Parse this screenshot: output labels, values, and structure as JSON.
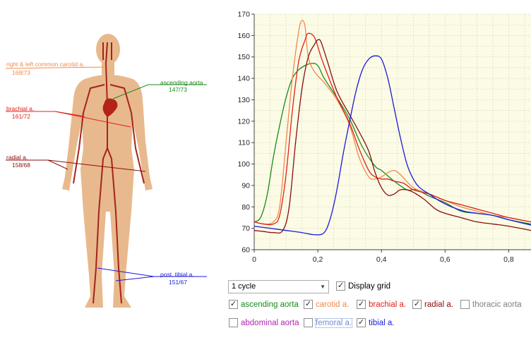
{
  "annotations": [
    {
      "id": "carotid",
      "name": "right & left common carotid a.",
      "value": "168/73",
      "color": "#f08a4b"
    },
    {
      "id": "ascending",
      "name": "ascending aorta",
      "value": "147/73",
      "color": "#1a8a1a"
    },
    {
      "id": "brachial",
      "name": "brachial a.",
      "value": "161/72",
      "color": "#e0211b"
    },
    {
      "id": "radial",
      "name": "radial a.",
      "value": "158/68",
      "color": "#8b0d0d"
    },
    {
      "id": "tibial",
      "name": "post. tibial a.",
      "value": "151/67",
      "color": "#1a1adb"
    }
  ],
  "controls": {
    "cycle_select": "1 cycle",
    "display_grid": {
      "label": "Display grid",
      "checked": "✓"
    },
    "checkboxes": [
      {
        "id": "ascending",
        "label": "ascending aorta",
        "checked": "✓",
        "color": "#1a8a1a"
      },
      {
        "id": "carotid",
        "label": "carotid a.",
        "checked": "✓",
        "color": "#f08a4b"
      },
      {
        "id": "brachial",
        "label": "brachial a.",
        "checked": "✓",
        "color": "#e0211b"
      },
      {
        "id": "radial",
        "label": "radial a.",
        "checked": "✓",
        "color": "#8b0d0d"
      },
      {
        "id": "thoracic",
        "label": "thoracic aorta",
        "checked": "",
        "color": "#808080"
      },
      {
        "id": "abdominal",
        "label": "abdominal aorta",
        "checked": "",
        "color": "#b026b0"
      },
      {
        "id": "femoral",
        "label": "femoral a.",
        "checked": "",
        "color": "#6f8fd0"
      },
      {
        "id": "tibial",
        "label": "tibial a.",
        "checked": "✓",
        "color": "#1a1adb"
      }
    ]
  },
  "chart_data": {
    "type": "line",
    "title": "",
    "xlabel": "",
    "ylabel": "",
    "xlim": [
      0,
      0.87
    ],
    "ylim": [
      60,
      170
    ],
    "grid": true,
    "xticks": [
      0,
      0.2,
      0.4,
      0.6,
      0.8
    ],
    "xtick_labels": [
      "0",
      "0,2",
      "0,4",
      "0,6",
      "0,8"
    ],
    "yticks": [
      60,
      70,
      80,
      90,
      100,
      110,
      120,
      130,
      140,
      150,
      160,
      170
    ],
    "series": [
      {
        "id": "ascending",
        "color": "#1a8a1a",
        "points": [
          [
            0,
            73
          ],
          [
            0.02,
            75
          ],
          [
            0.04,
            85
          ],
          [
            0.06,
            103
          ],
          [
            0.08,
            118
          ],
          [
            0.1,
            131
          ],
          [
            0.12,
            140
          ],
          [
            0.14,
            144
          ],
          [
            0.16,
            146
          ],
          [
            0.18,
            147
          ],
          [
            0.2,
            146
          ],
          [
            0.22,
            140
          ],
          [
            0.26,
            131
          ],
          [
            0.3,
            121
          ],
          [
            0.34,
            108
          ],
          [
            0.38,
            99
          ],
          [
            0.4,
            97
          ],
          [
            0.44,
            92
          ],
          [
            0.48,
            88
          ],
          [
            0.51,
            88
          ],
          [
            0.55,
            85
          ],
          [
            0.6,
            82
          ],
          [
            0.65,
            78
          ],
          [
            0.7,
            77
          ],
          [
            0.75,
            76
          ],
          [
            0.8,
            74
          ],
          [
            0.87,
            72
          ]
        ]
      },
      {
        "id": "carotid",
        "color": "#f08a4b",
        "points": [
          [
            0,
            73
          ],
          [
            0.03,
            72
          ],
          [
            0.06,
            73
          ],
          [
            0.08,
            80
          ],
          [
            0.1,
            110
          ],
          [
            0.12,
            140
          ],
          [
            0.14,
            162
          ],
          [
            0.15,
            167
          ],
          [
            0.16,
            164
          ],
          [
            0.17,
            150
          ],
          [
            0.19,
            143
          ],
          [
            0.22,
            138
          ],
          [
            0.26,
            130
          ],
          [
            0.3,
            118
          ],
          [
            0.33,
            103
          ],
          [
            0.36,
            94
          ],
          [
            0.38,
            93
          ],
          [
            0.4,
            94
          ],
          [
            0.42,
            96
          ],
          [
            0.44,
            97
          ],
          [
            0.46,
            95
          ],
          [
            0.5,
            89
          ],
          [
            0.55,
            86
          ],
          [
            0.6,
            83
          ],
          [
            0.65,
            80
          ],
          [
            0.7,
            78
          ],
          [
            0.75,
            76
          ],
          [
            0.8,
            75
          ],
          [
            0.87,
            73
          ]
        ]
      },
      {
        "id": "brachial",
        "color": "#e0211b",
        "points": [
          [
            0,
            73
          ],
          [
            0.03,
            72
          ],
          [
            0.06,
            72
          ],
          [
            0.08,
            76
          ],
          [
            0.1,
            95
          ],
          [
            0.12,
            125
          ],
          [
            0.14,
            148
          ],
          [
            0.16,
            158
          ],
          [
            0.17,
            161
          ],
          [
            0.19,
            159
          ],
          [
            0.21,
            150
          ],
          [
            0.23,
            142
          ],
          [
            0.26,
            131
          ],
          [
            0.3,
            119
          ],
          [
            0.33,
            107
          ],
          [
            0.36,
            97
          ],
          [
            0.38,
            94
          ],
          [
            0.4,
            93
          ],
          [
            0.42,
            93
          ],
          [
            0.44,
            92
          ],
          [
            0.47,
            91
          ],
          [
            0.5,
            88
          ],
          [
            0.55,
            86
          ],
          [
            0.6,
            83
          ],
          [
            0.65,
            81
          ],
          [
            0.7,
            79
          ],
          [
            0.75,
            77
          ],
          [
            0.8,
            75
          ],
          [
            0.87,
            73
          ]
        ]
      },
      {
        "id": "radial",
        "color": "#8b0d0d",
        "points": [
          [
            0,
            69
          ],
          [
            0.03,
            68.5
          ],
          [
            0.06,
            68
          ],
          [
            0.09,
            69
          ],
          [
            0.11,
            80
          ],
          [
            0.13,
            110
          ],
          [
            0.15,
            135
          ],
          [
            0.17,
            150
          ],
          [
            0.19,
            156
          ],
          [
            0.2,
            158
          ],
          [
            0.21,
            157
          ],
          [
            0.23,
            148
          ],
          [
            0.26,
            134
          ],
          [
            0.3,
            123
          ],
          [
            0.33,
            115
          ],
          [
            0.36,
            106
          ],
          [
            0.38,
            96
          ],
          [
            0.4,
            89
          ],
          [
            0.42,
            85.5
          ],
          [
            0.44,
            86
          ],
          [
            0.46,
            88
          ],
          [
            0.49,
            87.5
          ],
          [
            0.53,
            84
          ],
          [
            0.57,
            79
          ],
          [
            0.6,
            77
          ],
          [
            0.65,
            75
          ],
          [
            0.7,
            73
          ],
          [
            0.75,
            72
          ],
          [
            0.8,
            71
          ],
          [
            0.87,
            69
          ]
        ]
      },
      {
        "id": "tibial",
        "color": "#1a1adb",
        "points": [
          [
            0,
            71
          ],
          [
            0.05,
            70
          ],
          [
            0.1,
            69
          ],
          [
            0.15,
            68
          ],
          [
            0.19,
            67
          ],
          [
            0.22,
            68
          ],
          [
            0.24,
            75
          ],
          [
            0.26,
            88
          ],
          [
            0.28,
            105
          ],
          [
            0.3,
            120
          ],
          [
            0.32,
            134
          ],
          [
            0.34,
            144
          ],
          [
            0.36,
            149
          ],
          [
            0.38,
            150.5
          ],
          [
            0.4,
            149
          ],
          [
            0.42,
            140
          ],
          [
            0.44,
            126
          ],
          [
            0.46,
            112
          ],
          [
            0.48,
            100
          ],
          [
            0.5,
            93
          ],
          [
            0.52,
            89
          ],
          [
            0.55,
            86
          ],
          [
            0.58,
            83
          ],
          [
            0.62,
            80
          ],
          [
            0.66,
            78
          ],
          [
            0.7,
            77
          ],
          [
            0.75,
            76
          ],
          [
            0.8,
            74
          ],
          [
            0.87,
            71.5
          ]
        ]
      }
    ]
  }
}
